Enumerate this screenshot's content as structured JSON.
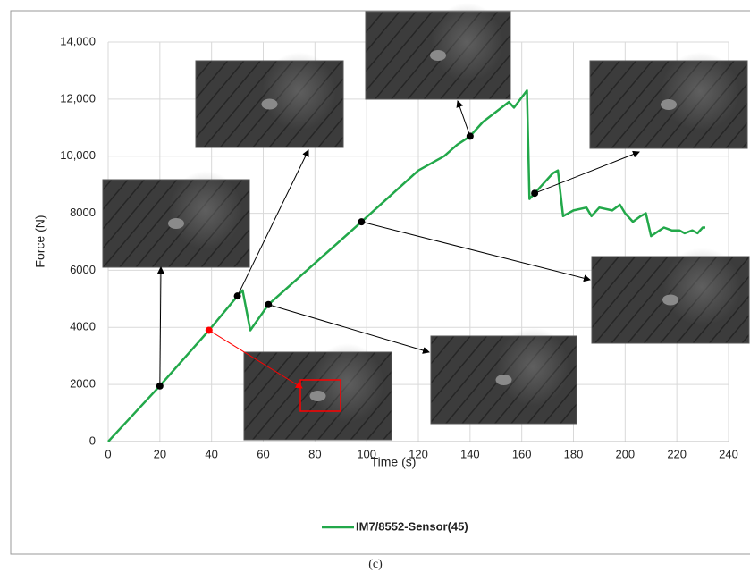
{
  "chart_data": {
    "type": "line",
    "x_label": "Time (s)",
    "y_label": "Force (N)",
    "x": [
      0,
      20,
      39,
      50,
      52,
      55,
      62,
      98,
      120,
      130,
      135,
      140,
      145,
      155,
      157,
      162,
      163,
      165,
      172,
      174,
      176,
      180,
      185,
      187,
      190,
      195,
      198,
      200,
      203,
      206,
      208,
      210,
      215,
      218,
      221,
      223,
      226,
      228,
      230,
      231
    ],
    "series": [
      {
        "name": "IM7/8552-Sensor(45)",
        "color": "#22a84a",
        "values": [
          0,
          1950,
          3900,
          5100,
          5300,
          3900,
          4800,
          7700,
          9500,
          10000,
          10400,
          10700,
          11200,
          11900,
          11700,
          12300,
          8500,
          8700,
          9400,
          9500,
          7900,
          8100,
          8200,
          7900,
          8200,
          8100,
          8300,
          8000,
          7700,
          7900,
          8000,
          7200,
          7500,
          7400,
          7400,
          7300,
          7400,
          7300,
          7500,
          7500
        ]
      }
    ],
    "annotations": [
      {
        "x": 20,
        "y": 1950,
        "color": "#000000"
      },
      {
        "x": 50,
        "y": 5100,
        "color": "#000000"
      },
      {
        "x": 140,
        "y": 10700,
        "color": "#000000"
      },
      {
        "x": 165,
        "y": 8700,
        "color": "#000000"
      },
      {
        "x": 98,
        "y": 7700,
        "color": "#000000"
      },
      {
        "x": 62,
        "y": 4800,
        "color": "#000000"
      },
      {
        "x": 39,
        "y": 3900,
        "color": "#ff0000"
      }
    ],
    "xlim": [
      0,
      240
    ],
    "xticks": [
      0,
      20,
      40,
      60,
      80,
      100,
      120,
      140,
      160,
      180,
      200,
      220,
      240
    ],
    "ylim": [
      0,
      14000
    ],
    "yticks": [
      0,
      2000,
      4000,
      6000,
      8000,
      {
        "value": 10000,
        "label": "10,000"
      },
      {
        "value": 12000,
        "label": "12,000"
      },
      {
        "value": 14000,
        "label": "14,000"
      }
    ],
    "grid": true,
    "legend": "bottom"
  },
  "caption": "(c)"
}
